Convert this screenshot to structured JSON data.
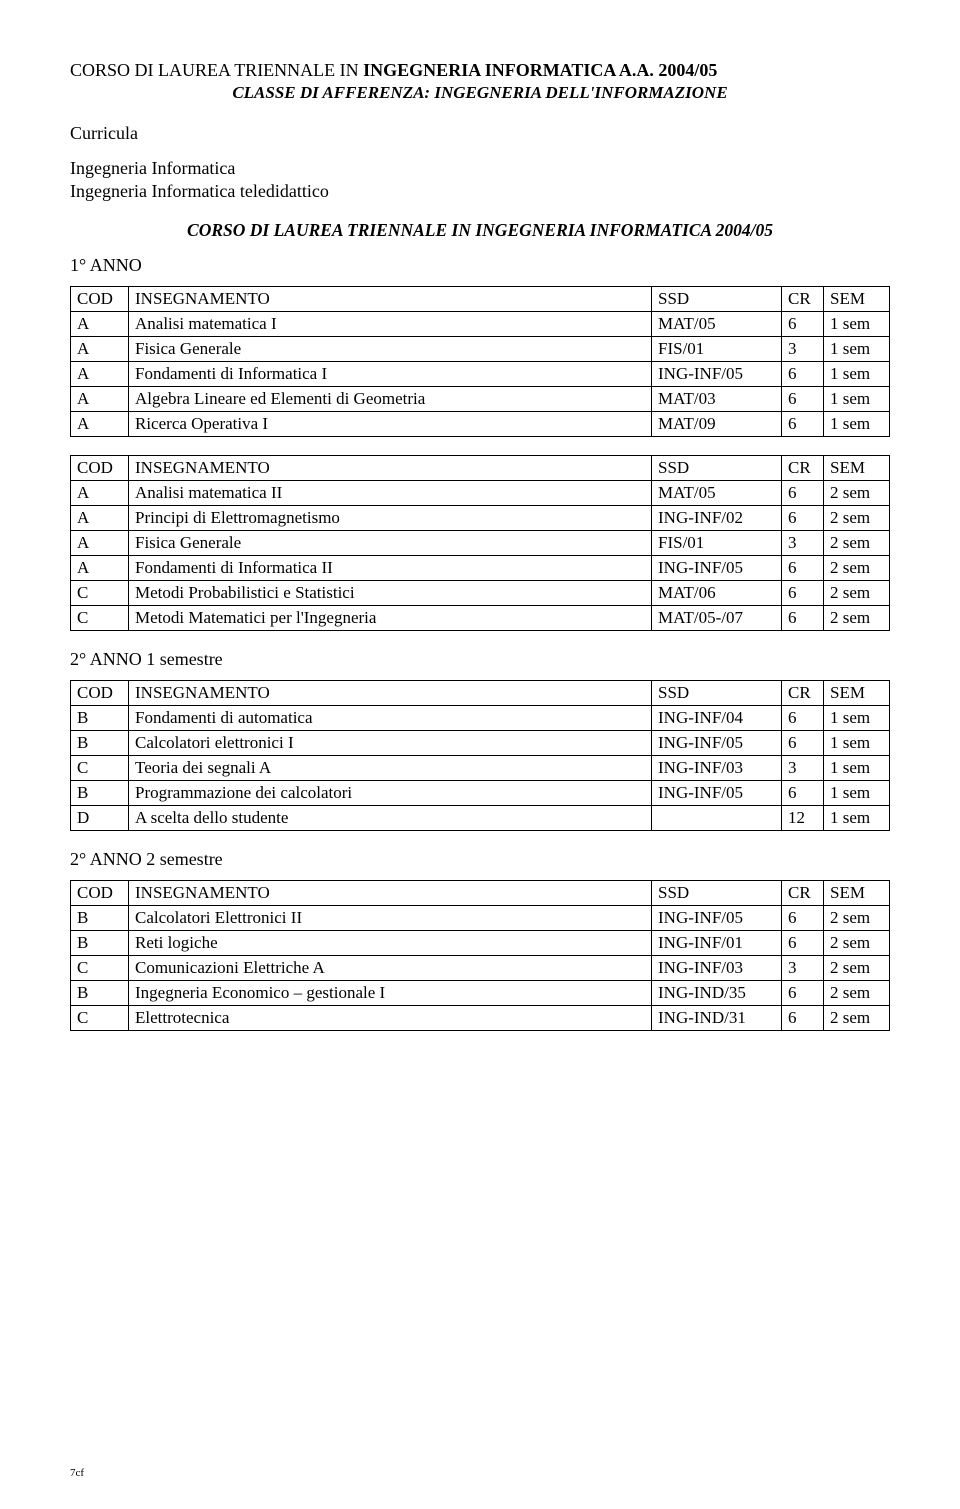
{
  "header": {
    "line1_a": "CORSO DI LAUREA TRIENNALE IN ",
    "line1_b": "INGEGNERIA INFORMATICA A.A. 2004/05",
    "line2": "CLASSE DI AFFERENZA: INGEGNERIA DELL'INFORMAZIONE"
  },
  "curricula": {
    "heading": "Curricula",
    "items": [
      "Ingegneria Informatica",
      "Ingegneria Informatica teledidattico"
    ]
  },
  "course_subtitle": "CORSO DI LAUREA TRIENNALE  IN INGEGNERIA INFORMATICA 2004/05",
  "year1_label": "1° ANNO",
  "table_headers": {
    "cod": "COD",
    "ins": "INSEGNAMENTO",
    "ssd": "SSD",
    "cr": "CR",
    "sem": "SEM"
  },
  "table1": [
    {
      "cod": "A",
      "ins": "Analisi matematica I",
      "ssd": "MAT/05",
      "cr": "6",
      "sem": "1 sem",
      "sc": true
    },
    {
      "cod": "A",
      "ins": "Fisica Generale",
      "ssd": "FIS/01",
      "cr": "3",
      "sem": "1 sem",
      "sc": true
    },
    {
      "cod": "A",
      "ins": "Fondamenti di Informatica I",
      "ssd": "ING-INF/05",
      "cr": "6",
      "sem": "1 sem",
      "sc": true
    },
    {
      "cod": "A",
      "ins": "Algebra Lineare ed Elementi di Geometria",
      "ssd": "MAT/03",
      "cr": "6",
      "sem": "1 sem",
      "sc": true
    },
    {
      "cod": "A",
      "ins": "Ricerca Operativa I",
      "ssd": "MAT/09",
      "cr": "6",
      "sem": "1 sem",
      "sc": false
    }
  ],
  "table2": [
    {
      "cod": "A",
      "ins": "Analisi matematica II",
      "ssd": "MAT/05",
      "cr": "6",
      "sem": "2 sem",
      "sc": true
    },
    {
      "cod": "A",
      "ins": "Principi di Elettromagnetismo",
      "ssd": "ING-INF/02",
      "cr": "6",
      "sem": "2 sem",
      "sc": true
    },
    {
      "cod": "A",
      "ins": "Fisica Generale",
      "ssd": "FIS/01",
      "cr": "3",
      "sem": "2 sem",
      "sc": true
    },
    {
      "cod": "A",
      "ins": "Fondamenti di Informatica II",
      "ssd": "ING-INF/05",
      "cr": "6",
      "sem": "2 sem",
      "sc": true
    },
    {
      "cod": "C",
      "ins": "Metodi Probabilistici e Statistici",
      "ssd": "MAT/06",
      "cr": "6",
      "sem": "2 sem",
      "sc": true
    },
    {
      "cod": "C",
      "ins": "Metodi Matematici per l'Ingegneria",
      "ssd": "MAT/05-/07",
      "cr": "6",
      "sem": "2 sem",
      "sc": true
    }
  ],
  "year2s1_label": "2° ANNO 1 semestre",
  "table3": [
    {
      "cod": "B",
      "ins": "Fondamenti di automatica",
      "ssd": "ING-INF/04",
      "cr": "6",
      "sem": "1 sem",
      "sc": true
    },
    {
      "cod": "B",
      "ins": "Calcolatori elettronici  I",
      "ssd": "ING-INF/05",
      "cr": "6",
      "sem": "1 sem",
      "sc": true
    },
    {
      "cod": "C",
      "ins": "Teoria dei segnali  A",
      "ssd": "ING-INF/03",
      "cr": "3",
      "sem": "1 sem",
      "sc": true
    },
    {
      "cod": "B",
      "ins": "Programmazione dei calcolatori",
      "ssd": "ING-INF/05",
      "cr": "6",
      "sem": "1 sem",
      "sc": true
    },
    {
      "cod": "D",
      "ins": "A scelta dello studente",
      "ssd": "",
      "cr": "12",
      "sem": "1 sem",
      "sc": false
    }
  ],
  "year2s2_label": "2° ANNO 2 semestre",
  "table4": [
    {
      "cod": "B",
      "ins": "Calcolatori Elettronici II",
      "ssd": "ING-INF/05",
      "cr": "6",
      "sem": "2 sem",
      "sc": true
    },
    {
      "cod": "B",
      "ins": "Reti logiche",
      "ssd": "ING-INF/01",
      "cr": "6",
      "sem": "2 sem",
      "sc": true
    },
    {
      "cod": "C",
      "ins": "Comunicazioni Elettriche A",
      "ssd": "ING-INF/03",
      "cr": "3",
      "sem": "2 sem",
      "sc": true
    },
    {
      "cod": "B",
      "ins": "Ingegneria Economico – gestionale I",
      "ssd": "ING-IND/35",
      "cr": "6",
      "sem": "2 sem",
      "sc": true
    },
    {
      "cod": "C",
      "ins": "Elettrotecnica",
      "ssd": "ING-IND/31",
      "cr": "6",
      "sem": "2 sem",
      "sc": true
    }
  ],
  "footer": "7cf"
}
